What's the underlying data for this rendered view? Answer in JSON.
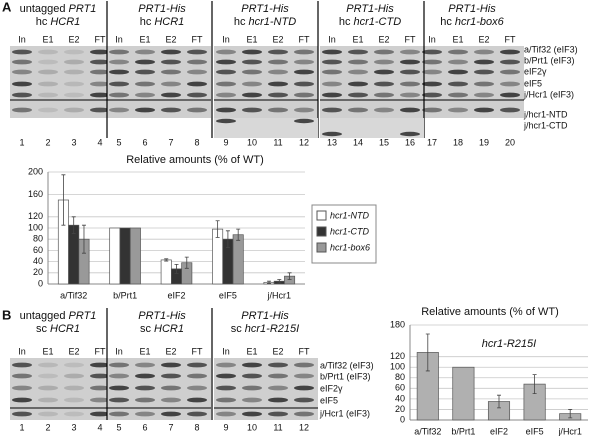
{
  "panel_a": {
    "label": "A",
    "groups": [
      [
        [
          {
            "t": "untagged",
            "i": false
          },
          {
            "t": "PRT1",
            "i": true
          }
        ],
        [
          {
            "t": "hc",
            "i": false
          },
          {
            "t": "HCR1",
            "i": true
          }
        ]
      ],
      [
        [
          {
            "t": "PRT1-His",
            "i": true
          }
        ],
        [
          {
            "t": "hc",
            "i": false
          },
          {
            "t": "HCR1",
            "i": true
          }
        ]
      ],
      [
        [
          {
            "t": "PRT1-His",
            "i": true
          }
        ],
        [
          {
            "t": "hc",
            "i": false
          },
          {
            "t": "hcr1-NTD",
            "i": true
          }
        ]
      ],
      [
        [
          {
            "t": "PRT1-His",
            "i": true
          }
        ],
        [
          {
            "t": "hc",
            "i": false
          },
          {
            "t": "hcr1-CTD",
            "i": true
          }
        ]
      ],
      [
        [
          {
            "t": "PRT1-His",
            "i": true
          }
        ],
        [
          {
            "t": "hc",
            "i": false
          },
          {
            "t": "hcr1-box6",
            "i": true
          }
        ]
      ]
    ],
    "lanes": [
      "In",
      "E1",
      "E2",
      "FT"
    ],
    "lane_numbers": [
      1,
      2,
      3,
      4,
      5,
      6,
      7,
      8,
      9,
      10,
      11,
      12,
      13,
      14,
      15,
      16,
      17,
      18,
      19,
      20
    ],
    "row_labels": [
      "a/Tif32 (eIF3)",
      "b/Prt1 (eIF3)",
      "eIF2γ",
      "eIF5",
      "j/Hcr1 (eIF3)",
      "j/hcr1-NTD",
      "j/hcr1-CTD"
    ]
  },
  "panel_b": {
    "label": "B",
    "groups": [
      [
        [
          {
            "t": "untagged",
            "i": false
          },
          {
            "t": "PRT1",
            "i": true
          }
        ],
        [
          {
            "t": "sc",
            "i": false
          },
          {
            "t": "HCR1",
            "i": true
          }
        ]
      ],
      [
        [
          {
            "t": "PRT1-His",
            "i": true
          }
        ],
        [
          {
            "t": "sc",
            "i": false
          },
          {
            "t": "HCR1",
            "i": true
          }
        ]
      ],
      [
        [
          {
            "t": "PRT1-His",
            "i": true
          }
        ],
        [
          {
            "t": "sc",
            "i": false
          },
          {
            "t": "hcr1-R215I",
            "i": true
          }
        ]
      ]
    ],
    "lanes": [
      "In",
      "E1",
      "E2",
      "FT"
    ],
    "lane_numbers": [
      1,
      2,
      3,
      4,
      5,
      6,
      7,
      8,
      9,
      10,
      11,
      12
    ],
    "row_labels": [
      "a/Tif32 (eIF3)",
      "b/Prt1 (eIF3)",
      "eIF2γ",
      "eIF5",
      "j/Hcr1 (eIF3)"
    ]
  },
  "chart_data": [
    {
      "type": "bar",
      "title": "Relative amounts (% of WT)",
      "categories": [
        "a/Tif32",
        "b/Prt1",
        "eIF2",
        "eIF5",
        "j/Hcr1"
      ],
      "series": [
        {
          "name": "hcr1-NTD",
          "color": "#ffffff",
          "values": [
            150,
            100,
            43,
            98,
            3
          ],
          "errors": [
            45,
            0,
            2,
            15,
            2
          ]
        },
        {
          "name": "hcr1-CTD",
          "color": "#333333",
          "values": [
            105,
            100,
            27,
            80,
            5
          ],
          "errors": [
            15,
            0,
            8,
            15,
            3
          ]
        },
        {
          "name": "hcr1-box6",
          "color": "#999999",
          "values": [
            80,
            100,
            38,
            88,
            14
          ],
          "errors": [
            25,
            0,
            10,
            10,
            6
          ]
        }
      ],
      "ylim": [
        0,
        200
      ],
      "yticks": [
        0,
        20,
        40,
        60,
        80,
        100,
        120,
        160,
        200
      ],
      "grid": true,
      "legend": "right"
    },
    {
      "type": "bar",
      "title": "Relative amounts (% of WT)",
      "categories": [
        "a/Tif32",
        "b/Prt1",
        "eIF2",
        "eIF5",
        "j/Hcr1"
      ],
      "series": [
        {
          "name": "hcr1-R215I",
          "color": "#b0b0b0",
          "values": [
            128,
            100,
            35,
            68,
            12
          ],
          "errors": [
            35,
            0,
            12,
            18,
            8
          ]
        }
      ],
      "ylim": [
        0,
        180
      ],
      "yticks": [
        0,
        20,
        40,
        60,
        80,
        100,
        120,
        180
      ],
      "grid": true,
      "legend": "top"
    }
  ]
}
